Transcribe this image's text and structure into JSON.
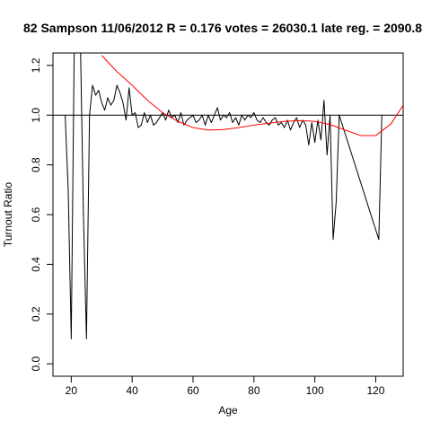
{
  "chart_data": {
    "type": "line",
    "title": "82 Sampson 11/06/2012 R = 0.176 votes = 26030.1 late reg. = 2090.8",
    "xlabel": "Age",
    "ylabel": "Turnout Ratio",
    "xlim": [
      14,
      129
    ],
    "ylim": [
      -0.05,
      1.25
    ],
    "xticks": [
      20,
      40,
      60,
      80,
      100,
      120
    ],
    "yticks": [
      0.0,
      0.2,
      0.4,
      0.6,
      0.8,
      1.0,
      1.2
    ],
    "reference_line": {
      "y": 1.0,
      "color": "#000000"
    },
    "series": [
      {
        "color": "#000000",
        "x": [
          18,
          19,
          20,
          21,
          22,
          23,
          24,
          25,
          26,
          27,
          28,
          29,
          30,
          31,
          32,
          33,
          34,
          35,
          36,
          37,
          38,
          39,
          40,
          41,
          42,
          43,
          44,
          45,
          46,
          47,
          48,
          49,
          50,
          51,
          52,
          53,
          54,
          55,
          56,
          57,
          58,
          59,
          60,
          61,
          62,
          63,
          64,
          65,
          66,
          67,
          68,
          69,
          70,
          71,
          72,
          73,
          74,
          75,
          76,
          77,
          78,
          79,
          80,
          81,
          82,
          83,
          84,
          85,
          86,
          87,
          88,
          89,
          90,
          91,
          92,
          93,
          94,
          95,
          96,
          97,
          98,
          99,
          100,
          101,
          102,
          103,
          104,
          105,
          106,
          107,
          108,
          121,
          122
        ],
        "y": [
          1.0,
          0.7,
          0.1,
          1.3,
          1.3,
          1.3,
          0.6,
          0.1,
          1.0,
          1.12,
          1.08,
          1.1,
          1.05,
          1.02,
          1.07,
          1.04,
          1.06,
          1.12,
          1.09,
          1.05,
          0.98,
          1.11,
          1.0,
          1.01,
          0.95,
          0.96,
          1.01,
          0.97,
          1.0,
          0.96,
          0.97,
          0.99,
          1.01,
          0.98,
          1.02,
          0.99,
          1.0,
          0.97,
          1.01,
          0.96,
          0.98,
          0.99,
          1.0,
          0.97,
          0.98,
          1.0,
          0.96,
          1.0,
          0.97,
          1.0,
          1.03,
          0.98,
          1.0,
          0.99,
          1.01,
          0.97,
          0.99,
          0.96,
          1.0,
          0.98,
          1.0,
          0.99,
          1.01,
          0.98,
          0.97,
          0.99,
          0.97,
          0.96,
          0.98,
          0.99,
          0.96,
          0.97,
          0.95,
          0.98,
          0.94,
          0.97,
          0.99,
          0.95,
          0.98,
          0.96,
          0.88,
          0.97,
          0.89,
          0.98,
          0.9,
          1.06,
          0.84,
          1.0,
          0.5,
          0.65,
          1.0,
          0.5,
          1.0
        ]
      },
      {
        "color": "#ff0000",
        "x": [
          30,
          35,
          40,
          45,
          50,
          55,
          60,
          65,
          70,
          75,
          80,
          85,
          90,
          95,
          100,
          105,
          110,
          115,
          120,
          125,
          129
        ],
        "y": [
          1.24,
          1.175,
          1.12,
          1.06,
          1.01,
          0.975,
          0.95,
          0.94,
          0.942,
          0.95,
          0.96,
          0.968,
          0.975,
          0.978,
          0.975,
          0.962,
          0.94,
          0.918,
          0.918,
          0.965,
          1.04
        ]
      }
    ],
    "grid": false,
    "legend": "none"
  }
}
